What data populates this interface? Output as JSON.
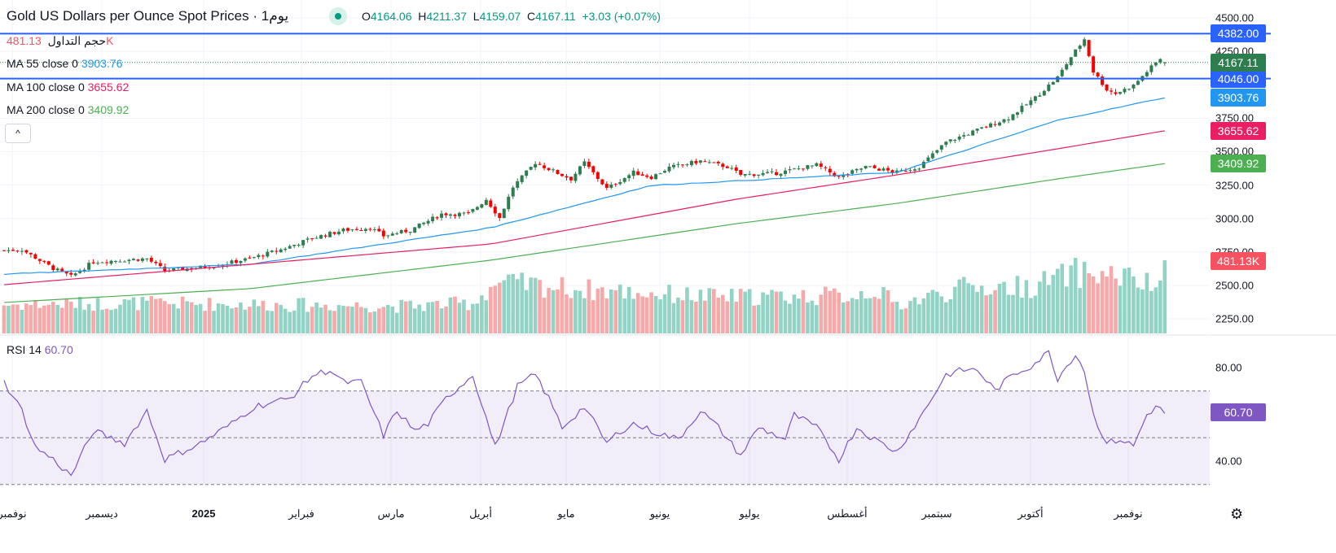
{
  "header": {
    "title": "Gold US Dollars per Ounce Spot Prices · يوم1",
    "open_label": "O",
    "open": "4164.06",
    "high_label": "H",
    "high": "4211.37",
    "low_label": "L",
    "low": "4159.07",
    "close_label": "C",
    "close": "4167.11",
    "change": "+3.03 (+0.07%)"
  },
  "legends": {
    "volume_label": "حجم التداول",
    "volume_value": "481.13K",
    "ma55_label": "MA  55 close 0",
    "ma55_value": "3903.76",
    "ma100_label": "MA  100 close 0",
    "ma100_value": "3655.62",
    "ma200_label": "MA  200 close 0",
    "ma200_value": "3409.92",
    "rsi_label": "RSI  14",
    "rsi_value": "60.70",
    "collapse": "^"
  },
  "colors": {
    "up": "#2e7d4f",
    "down": "#f70000",
    "vol_up": "#92d3c5",
    "vol_down": "#f7a8a8",
    "ma55": "#2196f3",
    "ma100": "#e91e63",
    "ma200": "#4caf50",
    "hline": "#2962ff",
    "rsi": "#7e57c2"
  },
  "chart_data": {
    "type": "candlestick",
    "title": "Gold US Dollars per Ounce Spot Prices",
    "x_unit": "trading day index",
    "price_ylim": [
      2150,
      4560
    ],
    "price_ticks": [
      "4500.00",
      "4250.00",
      "3750.00",
      "3500.00",
      "3250.00",
      "3000.00",
      "2750.00",
      "2500.00",
      "2250.00"
    ],
    "x_tick_labels": [
      "نوفمبر",
      "ديسمبر",
      "2025",
      "فبراير",
      "مارس",
      "أبريل",
      "مايو",
      "يونيو",
      "يوليو",
      "أغسطس",
      "سبتمبر",
      "أكتوبر",
      "نوفمبر"
    ],
    "close_anchors": [
      [
        0,
        2761
      ],
      [
        4,
        2767
      ],
      [
        11,
        2627
      ],
      [
        15,
        2566
      ],
      [
        20,
        2676
      ],
      [
        32,
        2700
      ],
      [
        36,
        2609
      ],
      [
        47,
        2645
      ],
      [
        55,
        2700
      ],
      [
        62,
        2767
      ],
      [
        69,
        2852
      ],
      [
        76,
        2913
      ],
      [
        82,
        2931
      ],
      [
        85,
        2870
      ],
      [
        91,
        2913
      ],
      [
        98,
        3034
      ],
      [
        104,
        3034
      ],
      [
        108,
        3144
      ],
      [
        111,
        3004
      ],
      [
        114,
        3235
      ],
      [
        119,
        3418
      ],
      [
        124,
        3339
      ],
      [
        127,
        3296
      ],
      [
        130,
        3418
      ],
      [
        135,
        3223
      ],
      [
        141,
        3345
      ],
      [
        145,
        3308
      ],
      [
        149,
        3381
      ],
      [
        156,
        3430
      ],
      [
        162,
        3387
      ],
      [
        165,
        3326
      ],
      [
        173,
        3339
      ],
      [
        182,
        3400
      ],
      [
        187,
        3308
      ],
      [
        193,
        3387
      ],
      [
        200,
        3345
      ],
      [
        205,
        3387
      ],
      [
        211,
        3570
      ],
      [
        218,
        3661
      ],
      [
        225,
        3752
      ],
      [
        231,
        3904
      ],
      [
        236,
        4056
      ],
      [
        239,
        4208
      ],
      [
        242,
        4342
      ],
      [
        244,
        4099
      ],
      [
        247,
        3965
      ],
      [
        249,
        3935
      ],
      [
        253,
        3995
      ],
      [
        256,
        4099
      ],
      [
        259,
        4196
      ],
      [
        260,
        4167.11
      ]
    ],
    "ma55_anchors": [
      [
        0,
        2584
      ],
      [
        55,
        2657
      ],
      [
        109,
        2931
      ],
      [
        145,
        3247
      ],
      [
        200,
        3345
      ],
      [
        236,
        3734
      ],
      [
        260,
        3903.76
      ]
    ],
    "ma100_anchors": [
      [
        0,
        2505
      ],
      [
        55,
        2657
      ],
      [
        109,
        2809
      ],
      [
        164,
        3144
      ],
      [
        200,
        3326
      ],
      [
        236,
        3521
      ],
      [
        260,
        3655.62
      ]
    ],
    "ma200_anchors": [
      [
        0,
        2372
      ],
      [
        55,
        2475
      ],
      [
        109,
        2688
      ],
      [
        164,
        2961
      ],
      [
        200,
        3113
      ],
      [
        236,
        3296
      ],
      [
        260,
        3409.92
      ]
    ],
    "horizontal_lines": [
      {
        "value": 4382,
        "label": "4382.00"
      },
      {
        "value": 4046,
        "label": "4046.00"
      }
    ],
    "last_price": {
      "value": 4167.11,
      "label": "4167.11"
    },
    "volume_last": "481.13K",
    "volume_anchors_k": [
      [
        0,
        190
      ],
      [
        30,
        200
      ],
      [
        60,
        190
      ],
      [
        90,
        180
      ],
      [
        105,
        200
      ],
      [
        110,
        330
      ],
      [
        118,
        320
      ],
      [
        130,
        290
      ],
      [
        160,
        240
      ],
      [
        190,
        250
      ],
      [
        195,
        290
      ],
      [
        200,
        190
      ],
      [
        215,
        300
      ],
      [
        230,
        310
      ],
      [
        240,
        400
      ],
      [
        250,
        380
      ],
      [
        258,
        300
      ],
      [
        260,
        481.13
      ]
    ],
    "rsi": {
      "period": 14,
      "ylim": [
        25,
        95
      ],
      "ticks": [
        "80.00",
        "40.00"
      ],
      "bands": [
        30,
        50,
        70
      ],
      "anchors": [
        [
          0,
          73.7
        ],
        [
          4,
          61.6
        ],
        [
          7,
          46
        ],
        [
          11,
          40.7
        ],
        [
          15,
          33.7
        ],
        [
          20,
          52.9
        ],
        [
          27,
          47.6
        ],
        [
          32,
          61.6
        ],
        [
          36,
          40.7
        ],
        [
          44,
          47.6
        ],
        [
          51,
          56
        ],
        [
          56,
          63.3
        ],
        [
          64,
          66.8
        ],
        [
          69,
          76.5
        ],
        [
          73,
          79
        ],
        [
          76,
          73.7
        ],
        [
          80,
          73.7
        ],
        [
          85,
          51
        ],
        [
          88,
          61.6
        ],
        [
          92,
          52.9
        ],
        [
          95,
          56
        ],
        [
          99,
          66.8
        ],
        [
          105,
          77
        ],
        [
          110,
          46
        ],
        [
          115,
          72
        ],
        [
          119,
          77
        ],
        [
          122,
          66.8
        ],
        [
          125,
          54.4
        ],
        [
          130,
          63.3
        ],
        [
          135,
          47.6
        ],
        [
          138,
          52.9
        ],
        [
          141,
          56
        ],
        [
          145,
          52.9
        ],
        [
          151,
          49.3
        ],
        [
          156,
          61.6
        ],
        [
          160,
          54.4
        ],
        [
          165,
          42.4
        ],
        [
          169,
          54.4
        ],
        [
          175,
          49.3
        ],
        [
          177,
          59.8
        ],
        [
          182,
          54.4
        ],
        [
          187,
          40.7
        ],
        [
          191,
          54.4
        ],
        [
          195,
          49.3
        ],
        [
          200,
          44
        ],
        [
          205,
          58
        ],
        [
          211,
          77
        ],
        [
          215,
          79
        ],
        [
          218,
          79
        ],
        [
          222,
          70.2
        ],
        [
          226,
          77
        ],
        [
          230,
          80.7
        ],
        [
          234,
          86.6
        ],
        [
          236,
          75.4
        ],
        [
          240,
          85.9
        ],
        [
          242,
          78.8
        ],
        [
          244,
          59.8
        ],
        [
          247,
          47.6
        ],
        [
          250,
          49.3
        ],
        [
          253,
          46.5
        ],
        [
          256,
          59.8
        ],
        [
          258,
          63.3
        ],
        [
          260,
          60.7
        ]
      ]
    }
  }
}
